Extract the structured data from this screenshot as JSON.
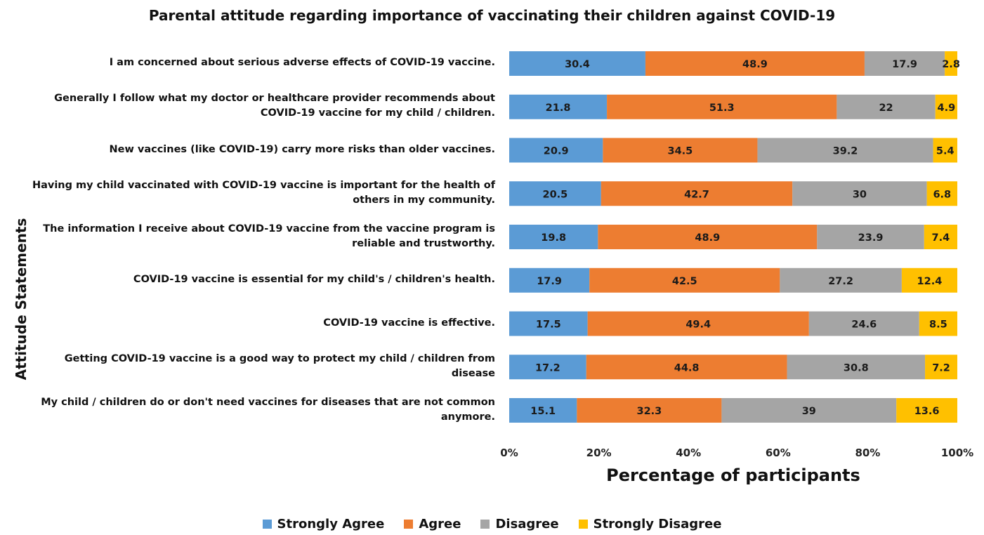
{
  "chart_data": {
    "type": "bar",
    "orientation": "horizontal",
    "stacked": true,
    "title": "Parental attitude regarding importance of vaccinating their children against COVID-19",
    "xlabel": "Percentage of participants",
    "ylabel": "Attitude Statements",
    "xlim": [
      0,
      100
    ],
    "x_ticks": [
      "0%",
      "20%",
      "40%",
      "60%",
      "80%",
      "100%"
    ],
    "categories": [
      "I am concerned about serious adverse effects of COVID-19 vaccine.",
      "Generally I follow what my doctor or healthcare provider recommends about COVID-19 vaccine for my child / children.",
      "New vaccines (like COVID-19) carry more risks than older vaccines.",
      "Having my child vaccinated with COVID-19 vaccine is important for the health of others in my community.",
      "The information I receive about COVID-19 vaccine from the vaccine program is reliable and trustworthy.",
      "COVID-19 vaccine is essential for my child's / children's health.",
      "COVID-19 vaccine is effective.",
      "Getting COVID-19 vaccine is a good way to protect my child / children from disease",
      "My child / children do or don't need vaccines for diseases that are not common anymore."
    ],
    "series": [
      {
        "name": "Strongly Agree",
        "color": "#5B9BD5",
        "values": [
          30.4,
          21.8,
          20.9,
          20.5,
          19.8,
          17.9,
          17.5,
          17.2,
          15.1
        ]
      },
      {
        "name": "Agree",
        "color": "#ED7D31",
        "values": [
          48.9,
          51.3,
          34.5,
          42.7,
          48.9,
          42.5,
          49.4,
          44.8,
          32.3
        ]
      },
      {
        "name": "Disagree",
        "color": "#A5A5A5",
        "values": [
          17.9,
          22,
          39.2,
          30,
          23.9,
          27.2,
          24.6,
          30.8,
          39
        ]
      },
      {
        "name": "Strongly Disagree",
        "color": "#FFC000",
        "values": [
          2.8,
          4.9,
          5.4,
          6.8,
          7.4,
          12.4,
          8.5,
          7.2,
          13.6
        ]
      }
    ],
    "grid": false,
    "legend": "bottom"
  }
}
